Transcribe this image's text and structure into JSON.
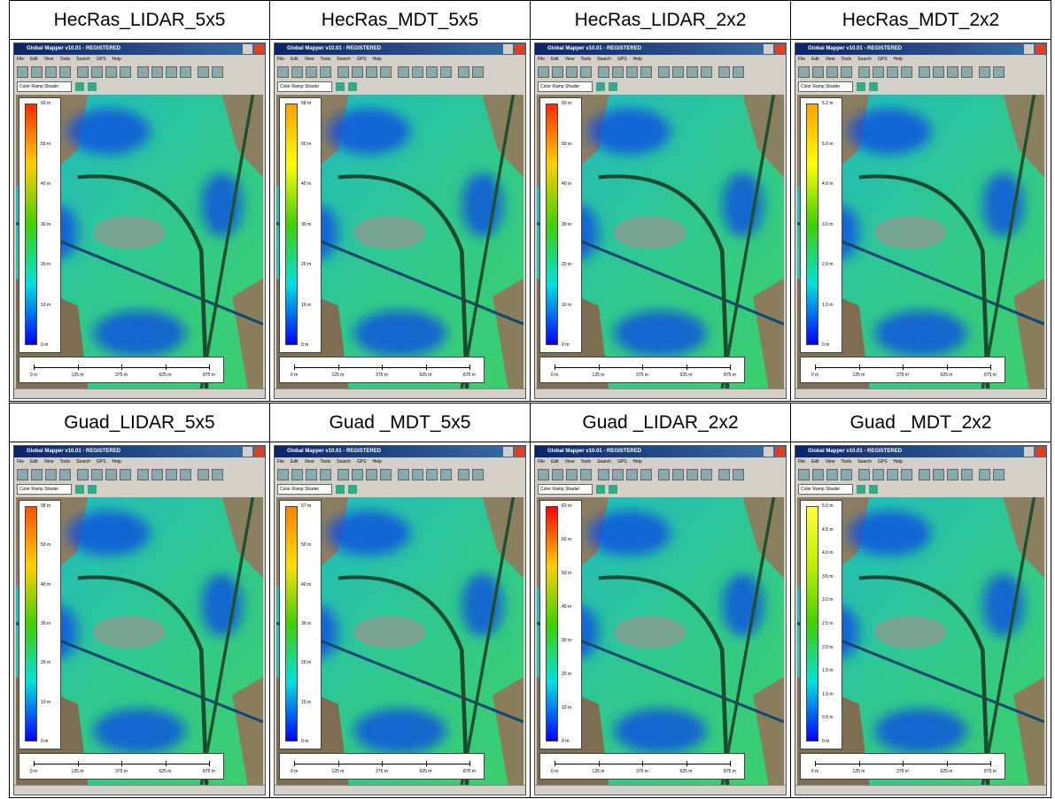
{
  "window": {
    "title": "Global Mapper v10.01 - REGISTERED",
    "menu": [
      "File",
      "Edit",
      "View",
      "Tools",
      "Search",
      "GPS",
      "Help"
    ],
    "shader": "Color Ramp Shader"
  },
  "panels": [
    {
      "header": "HecRas_LIDAR_5x5",
      "legend": [
        "60 m",
        "50 m",
        "40 m",
        "30 m",
        "20 m",
        "10 m",
        "0 m"
      ],
      "ramp": [
        "#ff2a00",
        "#ffd000",
        "#40d000",
        "#00e0e0",
        "#0000ff"
      ],
      "scale": [
        "0 m",
        "125 m",
        "375 m",
        "625 m",
        "875 m"
      ]
    },
    {
      "header": "HecRas_MDT_5x5",
      "legend": [
        "58 m",
        "50 m",
        "40 m",
        "30 m",
        "20 m",
        "10 m",
        "0 m"
      ],
      "ramp": [
        "#ffa000",
        "#ffff00",
        "#40d000",
        "#00e0e0",
        "#0000ff"
      ],
      "scale": [
        "0 m",
        "125 m",
        "375 m",
        "625 m",
        "875 m"
      ]
    },
    {
      "header": "HecRas_LIDAR_2x2",
      "legend": [
        "60 m",
        "50 m",
        "40 m",
        "30 m",
        "20 m",
        "10 m",
        "0 m"
      ],
      "ramp": [
        "#ff2a00",
        "#ffd000",
        "#40d000",
        "#00e0e0",
        "#0000ff"
      ],
      "scale": [
        "0 m",
        "125 m",
        "375 m",
        "625 m",
        "875 m"
      ]
    },
    {
      "header": "HecRas_MDT_2x2",
      "legend": [
        "5.2 m",
        "5.0 m",
        "4.0 m",
        "3.0 m",
        "2.0 m",
        "1.0 m",
        "0 m"
      ],
      "ramp": [
        "#ffa000",
        "#ffff00",
        "#40d000",
        "#00e0e0",
        "#0000ff"
      ],
      "scale": [
        "0 m",
        "125 m",
        "375 m",
        "625 m",
        "875 m"
      ]
    },
    {
      "header": "Guad_LIDAR_5x5",
      "legend": [
        "58 m",
        "50 m",
        "40 m",
        "30 m",
        "20 m",
        "10 m",
        "0 m"
      ],
      "ramp": [
        "#ff5000",
        "#ffd000",
        "#40d000",
        "#00e0e0",
        "#0000ff"
      ],
      "scale": [
        "0 m",
        "125 m",
        "375 m",
        "625 m",
        "875 m"
      ]
    },
    {
      "header": "Guad _MDT_5x5",
      "legend": [
        "57 m",
        "50 m",
        "40 m",
        "30 m",
        "20 m",
        "10 m",
        "0 m"
      ],
      "ramp": [
        "#ff8000",
        "#ffe000",
        "#40d000",
        "#00e0e0",
        "#0000ff"
      ],
      "scale": [
        "0 m",
        "125 m",
        "375 m",
        "625 m",
        "875 m"
      ]
    },
    {
      "header": "Guad _LIDAR_2x2",
      "legend": [
        "63 m",
        "60 m",
        "50 m",
        "40 m",
        "30 m",
        "20 m",
        "10 m",
        "0 m"
      ],
      "ramp": [
        "#ff0000",
        "#ffd000",
        "#40d000",
        "#00e0e0",
        "#0000ff"
      ],
      "scale": [
        "0 m",
        "125 m",
        "375 m",
        "625 m",
        "875 m"
      ]
    },
    {
      "header": "Guad _MDT_2x2",
      "legend": [
        "5.0 m",
        "4.5 m",
        "4.0 m",
        "3.5 m",
        "3.0 m",
        "2.5 m",
        "2.0 m",
        "1.5 m",
        "1.0 m",
        "0.5 m",
        "0 m"
      ],
      "ramp": [
        "#ffff40",
        "#c0f000",
        "#40d000",
        "#00e0e0",
        "#0000ff"
      ],
      "scale": [
        "0 m",
        "125 m",
        "375 m",
        "625 m",
        "875 m"
      ]
    }
  ]
}
